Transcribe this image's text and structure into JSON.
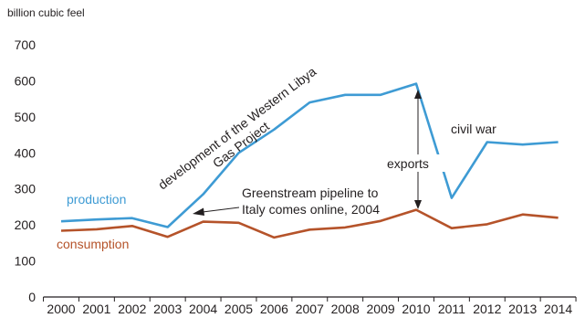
{
  "chart_data": {
    "type": "line",
    "title": "",
    "unit_label": "billion cubic feel",
    "xlabel": "",
    "ylabel": "",
    "ylim": [
      0,
      700
    ],
    "yticks": [
      0,
      100,
      200,
      300,
      400,
      500,
      600,
      700
    ],
    "categories": [
      "2000",
      "2001",
      "2002",
      "2003",
      "2004",
      "2005",
      "2006",
      "2007",
      "2008",
      "2009",
      "2010",
      "2011",
      "2012",
      "2013",
      "2014"
    ],
    "grid": false,
    "series": [
      {
        "name": "production",
        "color": "#3e9bd4",
        "values": [
          210,
          215,
          219,
          194,
          285,
          400,
          465,
          540,
          561,
          561,
          592,
          275,
          430,
          423,
          430
        ]
      },
      {
        "name": "consumption",
        "color": "#b5532a",
        "values": [
          184,
          188,
          197,
          167,
          209,
          206,
          165,
          187,
          193,
          211,
          242,
          191,
          202,
          229,
          220
        ]
      }
    ],
    "annotations": {
      "western_libya": {
        "line1": "development of the Western Libya",
        "line2": "Gas Project"
      },
      "greenstream": {
        "line1": "Greenstream pipeline to",
        "line2": "Italy comes online, 2004"
      },
      "exports": "exports",
      "civil_war": "civil war"
    }
  }
}
